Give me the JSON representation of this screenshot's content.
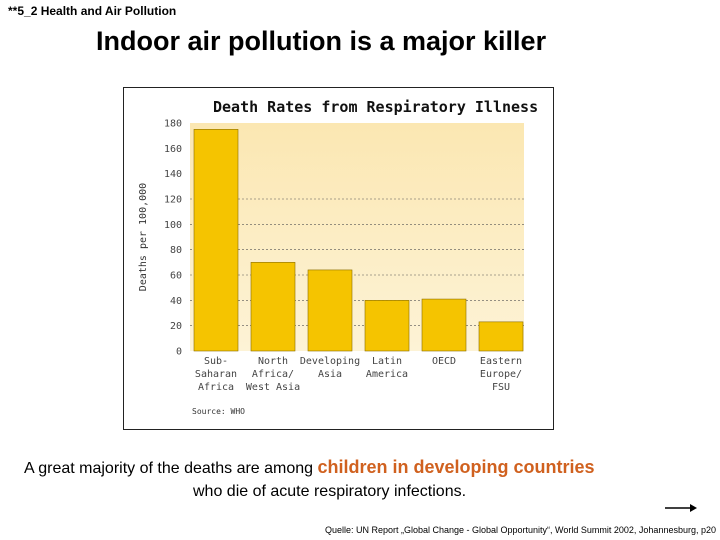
{
  "header": {
    "tag": "**5_2 Health and Air Pollution"
  },
  "slide": {
    "title": "Indoor air pollution is a major killer"
  },
  "chart_data": {
    "type": "bar",
    "title": "Death Rates from Respiratory Illness",
    "ylabel": "Deaths per 100,000",
    "xlabel": "",
    "ylim": [
      0,
      180
    ],
    "yticks": [
      "0",
      "20",
      "40",
      "60",
      "80",
      "100",
      "120",
      "140",
      "160",
      "180"
    ],
    "yticks_values": [
      0,
      20,
      40,
      60,
      80,
      100,
      120,
      140,
      160,
      180
    ],
    "categories": [
      [
        "Sub-",
        "Saharan",
        "Africa"
      ],
      [
        "North",
        "Africa/",
        "West Asia"
      ],
      [
        "Developing",
        "Asia"
      ],
      [
        "Latin",
        "America"
      ],
      [
        "OECD"
      ],
      [
        "Eastern",
        "Europe/",
        "FSU"
      ]
    ],
    "values": [
      175,
      70,
      64,
      40,
      41,
      23
    ],
    "source": "Source: WHO",
    "grid": true,
    "colors": {
      "bar": "#f5c400",
      "plot_bg": "#fdf3d6",
      "plot_bg_top": "#fbe7b2"
    }
  },
  "caption": {
    "prefix": "A great majority  of the deaths are among ",
    "highlight": "children in developing countries",
    "suffix": "who die of acute respiratory infections.",
    "highlight_color": "#d0611f"
  },
  "footer": {
    "source": "Quelle: UN Report „Global Change - Global Opportunity“, World Summit 2002, Johannesburg,  p20"
  }
}
